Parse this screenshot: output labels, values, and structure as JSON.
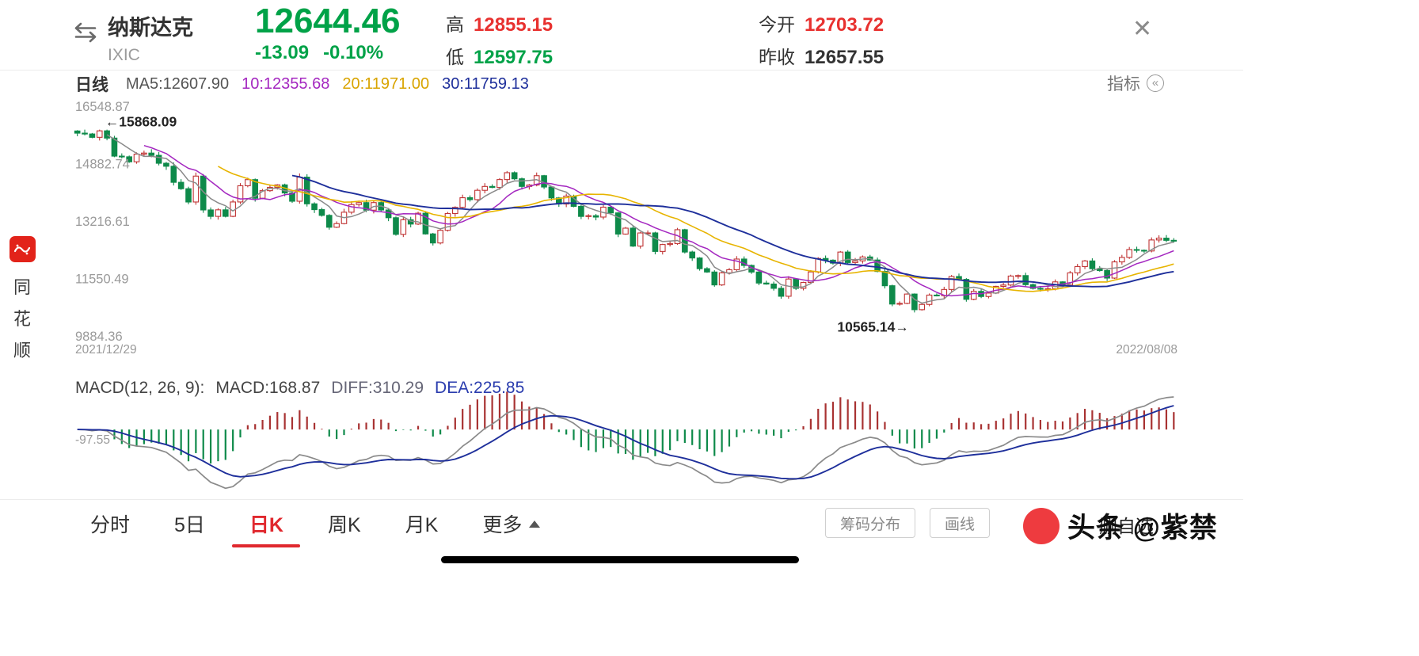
{
  "header": {
    "stock_name": "纳斯达克",
    "stock_code": "IXIC",
    "price": "12644.46",
    "change": "-13.09",
    "change_pct": "-0.10%",
    "high_label": "高",
    "high": "12855.15",
    "low_label": "低",
    "low": "12597.75",
    "open_label": "今开",
    "open": "12703.72",
    "prev_close_label": "昨收",
    "prev_close": "12657.55",
    "close_icon": "✕"
  },
  "indicator_row": {
    "period": "日线",
    "ma5": "MA5:12607.90",
    "ma10": "10:12355.68",
    "ma20": "20:11971.00",
    "ma30": "30:11759.13",
    "indicator_label": "指标"
  },
  "sidebar": {
    "vertical_name": [
      "同",
      "花",
      "顺"
    ]
  },
  "chart_data": {
    "type": "candlestick",
    "title": "纳斯达克 IXIC 日K",
    "y_axis_values": [
      16548.87,
      14882.74,
      13216.61,
      11550.49,
      9884.36
    ],
    "x_axis_labels": [
      "2021/12/29",
      "2022/08/08"
    ],
    "annotation_high": "←15868.09",
    "annotation_low": "10565.14→",
    "high_value": 15868.09,
    "low_value": 10565.14,
    "grid": false,
    "up_color": "#c03434",
    "down_color": "#0e8a4a",
    "ma_colors": {
      "ma5": "#8a8a8a",
      "ma10": "#a427c0",
      "ma20": "#e7b400",
      "ma30": "#1e2f9b"
    },
    "closes": [
      15766,
      15742,
      15645,
      15833,
      15623,
      15100,
      15080,
      14935,
      15157,
      15188,
      15122,
      14893,
      14806,
      14340,
      14154,
      13769,
      14520,
      13539,
      13352,
      13542,
      13353,
      13770,
      14240,
      14418,
      13878,
      14098,
      14194,
      14266,
      14031,
      13791,
      14490,
      13716,
      13548,
      13381,
      13037,
      13142,
      13473,
      13694,
      13751,
      13532,
      13752,
      13538,
      13313,
      12831,
      13255,
      13129,
      13444,
      12843,
      12581,
      12948,
      13436,
      13614,
      13893,
      13838,
      14108,
      14220,
      14191,
      14420,
      14619,
      14442,
      14221,
      14262,
      14532,
      14204,
      13888,
      13711,
      13940,
      13643,
      13351,
      13371,
      13332,
      13619,
      13453,
      12839,
      13010,
      12490,
      12871,
      12872,
      12335,
      12536,
      12564,
      12965,
      12318,
      12145,
      11835,
      11738,
      11364,
      11713,
      11805,
      12114,
      11929,
      11737,
      11418,
      11389,
      11265,
      11035,
      11535,
      11265,
      11435,
      11741,
      12131,
      12081,
      11995,
      12317,
      12013,
      12062,
      12175,
      12086,
      11754,
      11340,
      10809,
      10828,
      11099,
      10646,
      10798,
      11069,
      11053,
      11232,
      11607,
      11524,
      10946,
      11177,
      11028,
      11127,
      11322,
      11361,
      11621,
      11635,
      11372,
      11264,
      11247,
      11251,
      11452,
      11360,
      11713,
      11897,
      12059,
      11834,
      11782,
      11562,
      12032,
      12162,
      12390,
      12368,
      12348,
      12668,
      12720,
      12657,
      12644.46
    ],
    "macd": {
      "title": "MACD(12, 26, 9):",
      "macd_label": "MACD:168.87",
      "diff_label": "DIFF:310.29",
      "dea_label": "DEA:225.85",
      "axis_label": "-97.55",
      "axis_value": -97.55,
      "params": [
        12,
        26,
        9
      ],
      "hist_up_color": "#a83232",
      "hist_down_color": "#0e8a4a",
      "diff_line_color": "#8a8a8a",
      "dea_line_color": "#1e2f9b"
    }
  },
  "tabbar": {
    "tabs": [
      {
        "label": "分时",
        "active": false
      },
      {
        "label": "5日",
        "active": false
      },
      {
        "label": "日K",
        "active": true
      },
      {
        "label": "周K",
        "active": false
      },
      {
        "label": "月K",
        "active": false
      },
      {
        "label": "更多",
        "active": false,
        "has_caret": true
      }
    ],
    "tool_buttons": [
      "筹码分布",
      "画线"
    ],
    "watchlist_action": "删自选"
  },
  "watermark": {
    "text": "头条 @紫禁"
  }
}
